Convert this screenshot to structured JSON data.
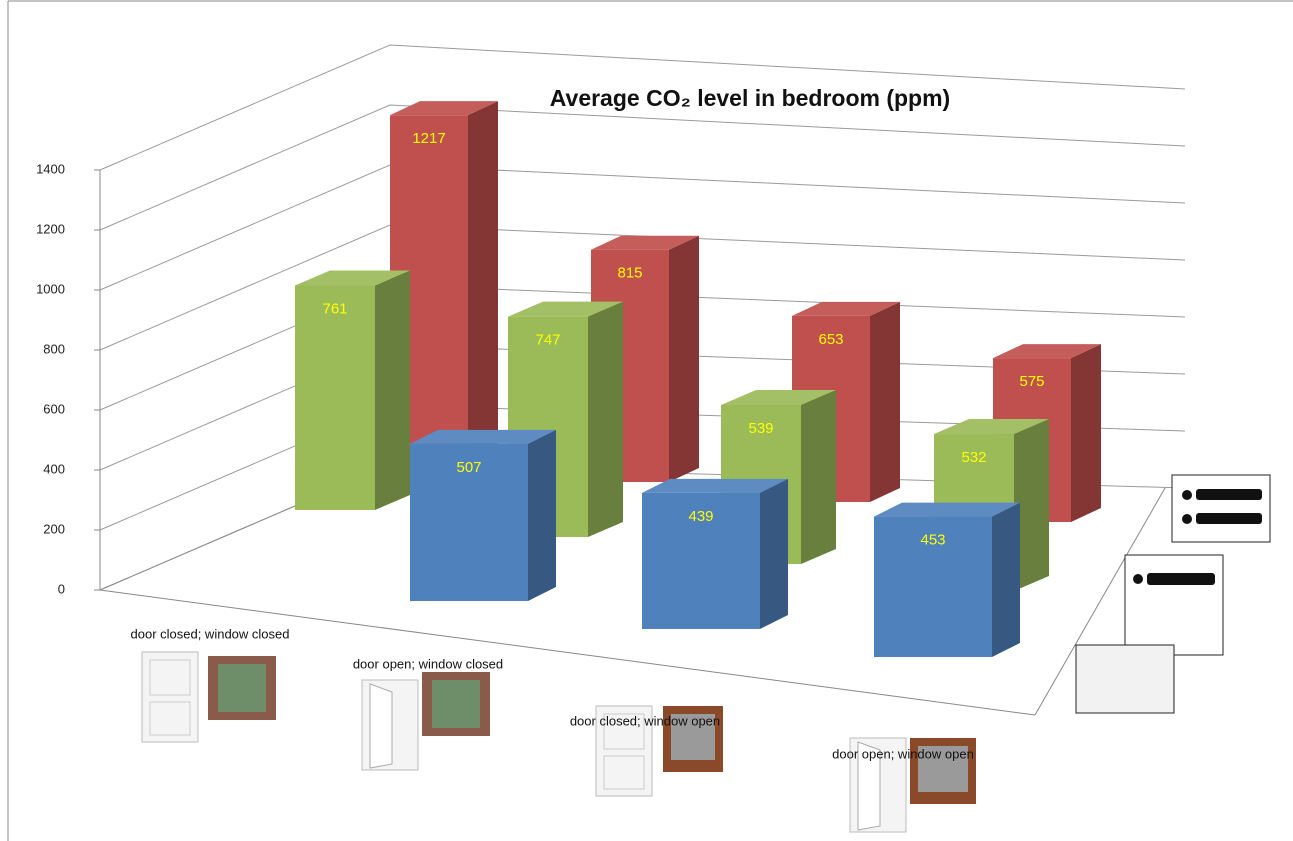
{
  "chart_data": {
    "type": "bar3d",
    "title": "Average CO₂ level in bedroom (ppm)",
    "categories": [
      "door closed; window closed",
      "door open; window closed",
      "door closed; window open",
      "door open; window open"
    ],
    "series": [
      {
        "color": "#4f81bd",
        "values": [
          null,
          507,
          439,
          453
        ]
      },
      {
        "color": "#9bbb59",
        "values": [
          761,
          747,
          539,
          532
        ]
      },
      {
        "color": "#c0504d",
        "values": [
          1217,
          815,
          653,
          575
        ]
      }
    ],
    "label_color": "#ffff00",
    "ylim": [
      0,
      1400
    ],
    "yticks": [
      0,
      200,
      400,
      600,
      800,
      1000,
      1200,
      1400
    ],
    "grid": true
  }
}
